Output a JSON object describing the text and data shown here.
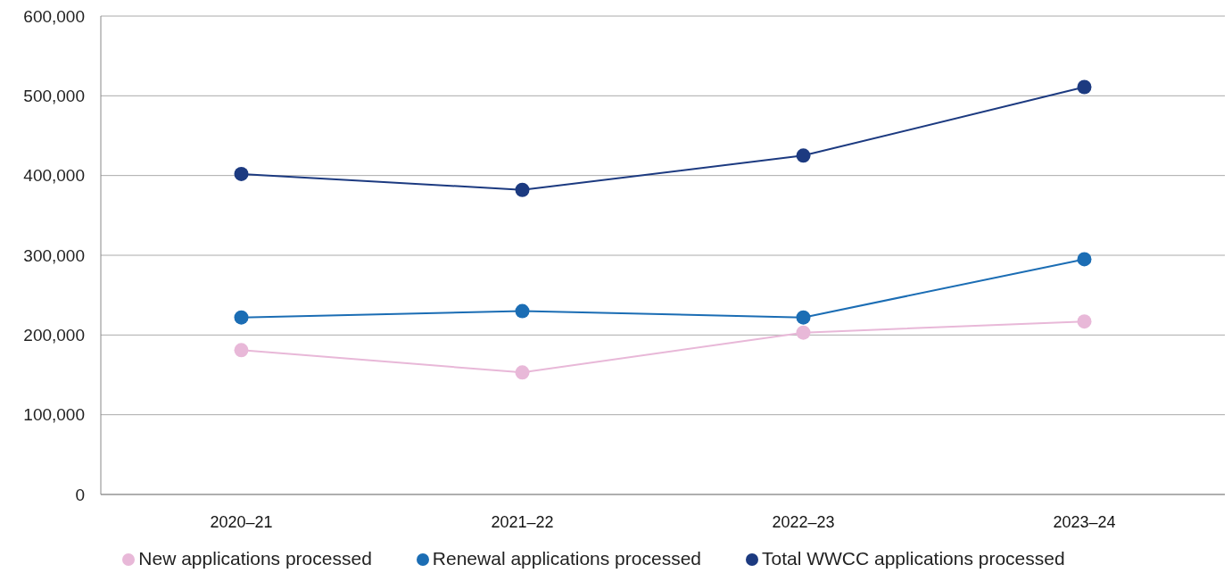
{
  "chart_data": {
    "type": "line",
    "categories": [
      "2020–21",
      "2021–22",
      "2022–23",
      "2023–24"
    ],
    "series": [
      {
        "name": "Total WWCC applications processed",
        "color": "#1c3a80",
        "values": [
          402000,
          382000,
          425000,
          511000
        ]
      },
      {
        "name": "Renewal applications processed",
        "color": "#1b6db4",
        "values": [
          222000,
          230000,
          222000,
          295000
        ]
      },
      {
        "name": "New applications processed",
        "color": "#e8b8d8",
        "values": [
          181000,
          153000,
          203000,
          217000
        ]
      }
    ],
    "ylim": [
      0,
      600000
    ],
    "yticks": [
      0,
      {
        "value": 100000,
        "label": "100,000"
      },
      {
        "value": 200000,
        "label": "200,000"
      },
      {
        "value": 300000,
        "label": "300,000"
      },
      {
        "value": 400000,
        "label": "400,000"
      },
      {
        "value": 500000,
        "label": "500,000"
      },
      {
        "value": 600000,
        "label": "600,000"
      }
    ],
    "grid": "y",
    "legend": "bottom",
    "marker": "circle",
    "line_style": "solid"
  }
}
